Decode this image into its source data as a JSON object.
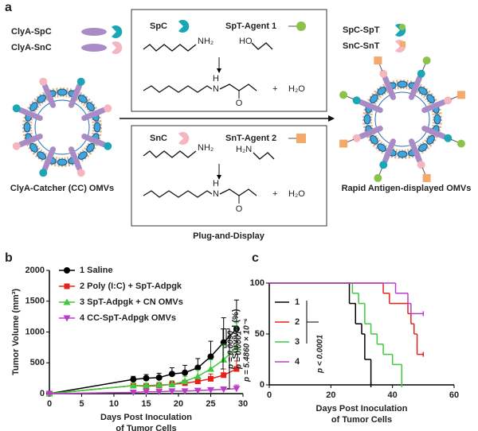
{
  "panel_a": {
    "label": "a",
    "left": {
      "legend": [
        "ClyA-SpC",
        "ClyA-SnC"
      ],
      "caption": "ClyA-Catcher (CC) OMVs"
    },
    "reaction_1": {
      "catcher": "SpC",
      "tag": "SpT-Agent 1",
      "amine": "NH₂",
      "acid": "HO",
      "amide_n": "N",
      "amide_h": "H",
      "carbonyl": "O",
      "plus": "+",
      "water": "H₂O"
    },
    "reaction_2": {
      "catcher": "SnC",
      "tag": "SnT-Agent 2",
      "amine": "NH₂",
      "amide_reagent": "H₂N",
      "amide_n": "N",
      "amide_h": "H",
      "carbonyl": "O",
      "plus": "+",
      "water": "H₂O"
    },
    "caption": "Plug-and-Display",
    "right": {
      "legend": [
        "SpC-SpT",
        "SnC-SnT"
      ],
      "caption": "Rapid Antigen-displayed OMVs"
    }
  },
  "chart_data": [
    {
      "type": "line",
      "panel": "b",
      "ylabel": "Tumor Volume (mm³)",
      "xlabel": [
        "Days Post Inoculation",
        "of Tumor Cells"
      ],
      "x": [
        0,
        13,
        15,
        17,
        19,
        21,
        23,
        25,
        27,
        29
      ],
      "xlim": [
        0,
        30
      ],
      "xticks": [
        0,
        5,
        10,
        15,
        20,
        25,
        30
      ],
      "ylim": [
        0,
        2000
      ],
      "yticks": [
        0,
        500,
        1000,
        1500,
        2000
      ],
      "legend": "upper left",
      "series": [
        {
          "name": "1 Saline",
          "color": "#000000",
          "marker": "circle",
          "values": [
            0,
            230,
            250,
            260,
            320,
            340,
            420,
            600,
            830,
            1050
          ],
          "errors": [
            0,
            50,
            60,
            70,
            100,
            120,
            150,
            250,
            400,
            470
          ]
        },
        {
          "name": "2 Poly (I:C) + SpT-Adpgk",
          "color": "#e8201c",
          "marker": "square",
          "values": [
            0,
            130,
            120,
            130,
            150,
            170,
            200,
            240,
            300,
            400
          ],
          "errors": [
            0,
            40,
            40,
            40,
            50,
            50,
            60,
            80,
            100,
            130
          ]
        },
        {
          "name": "3 SpT-Adpgk + CN OMVs",
          "color": "#3ec93e",
          "marker": "triangle-up",
          "values": [
            0,
            130,
            130,
            140,
            150,
            200,
            280,
            400,
            550,
            750
          ],
          "errors": [
            0,
            40,
            40,
            50,
            60,
            80,
            100,
            150,
            250,
            400
          ]
        },
        {
          "name": "4 CC-SpT-Adpgk OMVs",
          "color": "#b73fc7",
          "marker": "triangle-down",
          "values": [
            0,
            20,
            30,
            30,
            40,
            40,
            50,
            60,
            70,
            80
          ],
          "errors": [
            0,
            10,
            10,
            15,
            15,
            20,
            20,
            30,
            40,
            60
          ]
        }
      ],
      "annotations": [
        "p = 0.0090",
        "p = 0.0001",
        "p = 5.4860 × 10⁻⁶"
      ]
    },
    {
      "type": "step",
      "panel": "c",
      "ylabel": "Survival (%)",
      "xlabel": [
        "Days Post Inoculation",
        "of Tumor Cells"
      ],
      "xlim": [
        0,
        60
      ],
      "xticks": [
        0,
        20,
        40,
        60
      ],
      "ylim": [
        0,
        100
      ],
      "yticks": [
        0,
        50,
        100
      ],
      "legend": "upper left",
      "series": [
        {
          "name": "1",
          "color": "#000000",
          "x": [
            0,
            26,
            28,
            30,
            31,
            33
          ],
          "values": [
            100,
            80,
            60,
            50,
            25,
            0
          ]
        },
        {
          "name": "2",
          "color": "#e8201c",
          "x": [
            0,
            37,
            39,
            45,
            46,
            47,
            48,
            50
          ],
          "values": [
            100,
            90,
            80,
            70,
            60,
            50,
            30,
            30
          ]
        },
        {
          "name": "3",
          "color": "#3ec93e",
          "x": [
            0,
            27,
            29,
            31,
            33,
            35,
            37,
            40,
            43
          ],
          "values": [
            100,
            90,
            80,
            60,
            50,
            40,
            30,
            20,
            0
          ]
        },
        {
          "name": "4",
          "color": "#b73fc7",
          "x": [
            0,
            41,
            45,
            46,
            50
          ],
          "values": [
            100,
            90,
            80,
            70,
            70
          ]
        }
      ],
      "annotations": [
        "p < 0.0001"
      ]
    }
  ]
}
